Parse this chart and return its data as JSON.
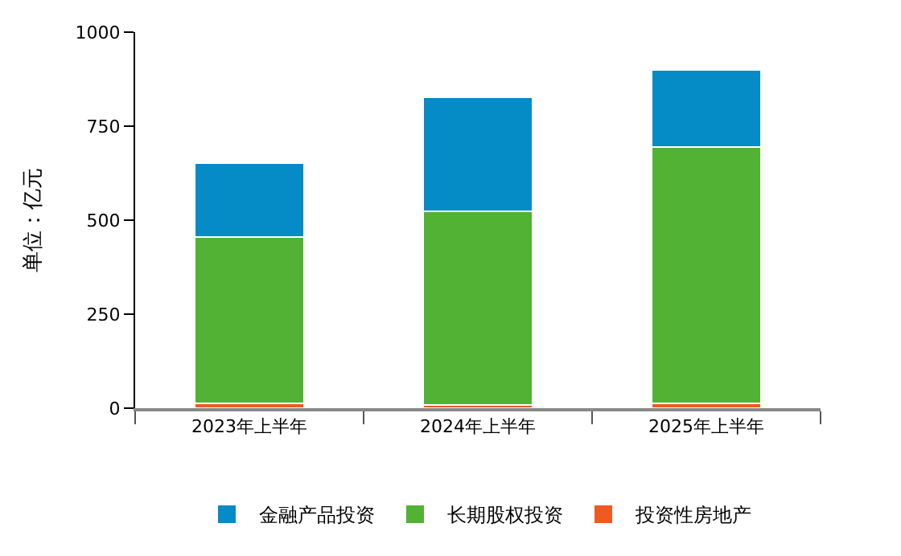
{
  "chart_data": {
    "type": "bar",
    "stacked": true,
    "ylabel": "单位：亿元",
    "categories": [
      "2023年上半年",
      "2024年上半年",
      "2025年上半年"
    ],
    "series": [
      {
        "name": "投资性房地产",
        "color": "#f05a22",
        "values": [
          13,
          9,
          13
        ]
      },
      {
        "name": "长期股权投资",
        "color": "#52b233",
        "values": [
          442,
          515,
          682
        ]
      },
      {
        "name": "金融产品投资",
        "color": "#058bc6",
        "values": [
          196,
          302,
          205
        ]
      }
    ],
    "ylim": [
      0,
      1000
    ],
    "yticks": [
      0,
      250,
      500,
      750,
      1000
    ],
    "grid": false,
    "legend": "bottom"
  }
}
